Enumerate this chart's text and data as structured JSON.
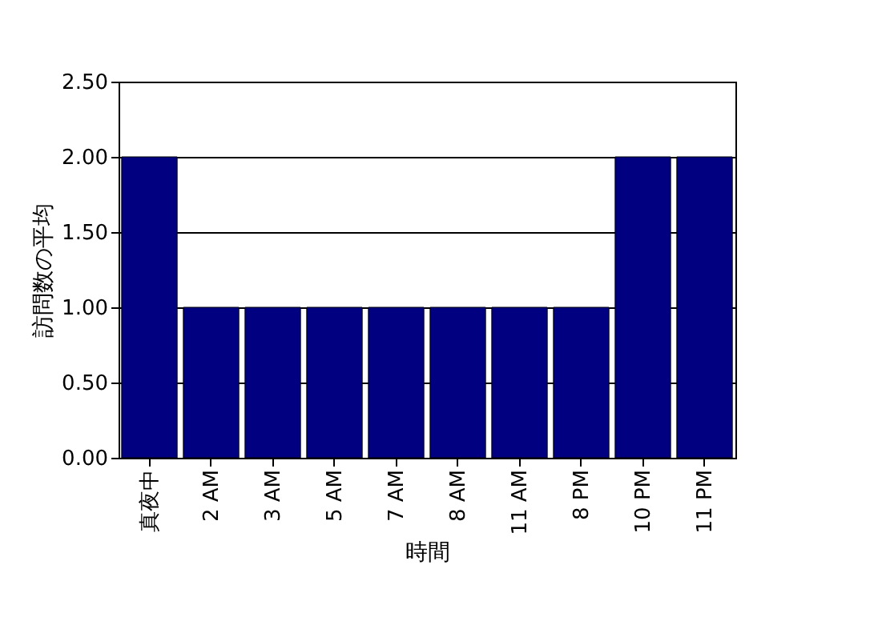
{
  "chart_data": {
    "type": "bar",
    "xlabel": "時間",
    "ylabel": "訪問数の平均",
    "categories": [
      "真夜中",
      "2 AM",
      "3 AM",
      "5 AM",
      "7 AM",
      "8 AM",
      "11 AM",
      "8 PM",
      "10 PM",
      "11 PM"
    ],
    "values": [
      2,
      1,
      1,
      1,
      1,
      1,
      1,
      1,
      2,
      2
    ],
    "color": "#000080",
    "ylim": [
      0,
      2.5
    ],
    "yticks": [
      {
        "value": 0,
        "label": "0.00"
      },
      {
        "value": 0.5,
        "label": "0.50"
      },
      {
        "value": 1,
        "label": "1.00"
      },
      {
        "value": 1.5,
        "label": "1.50"
      },
      {
        "value": 2,
        "label": "2.00"
      },
      {
        "value": 2.5,
        "label": "2.50"
      }
    ],
    "grid": "y"
  }
}
